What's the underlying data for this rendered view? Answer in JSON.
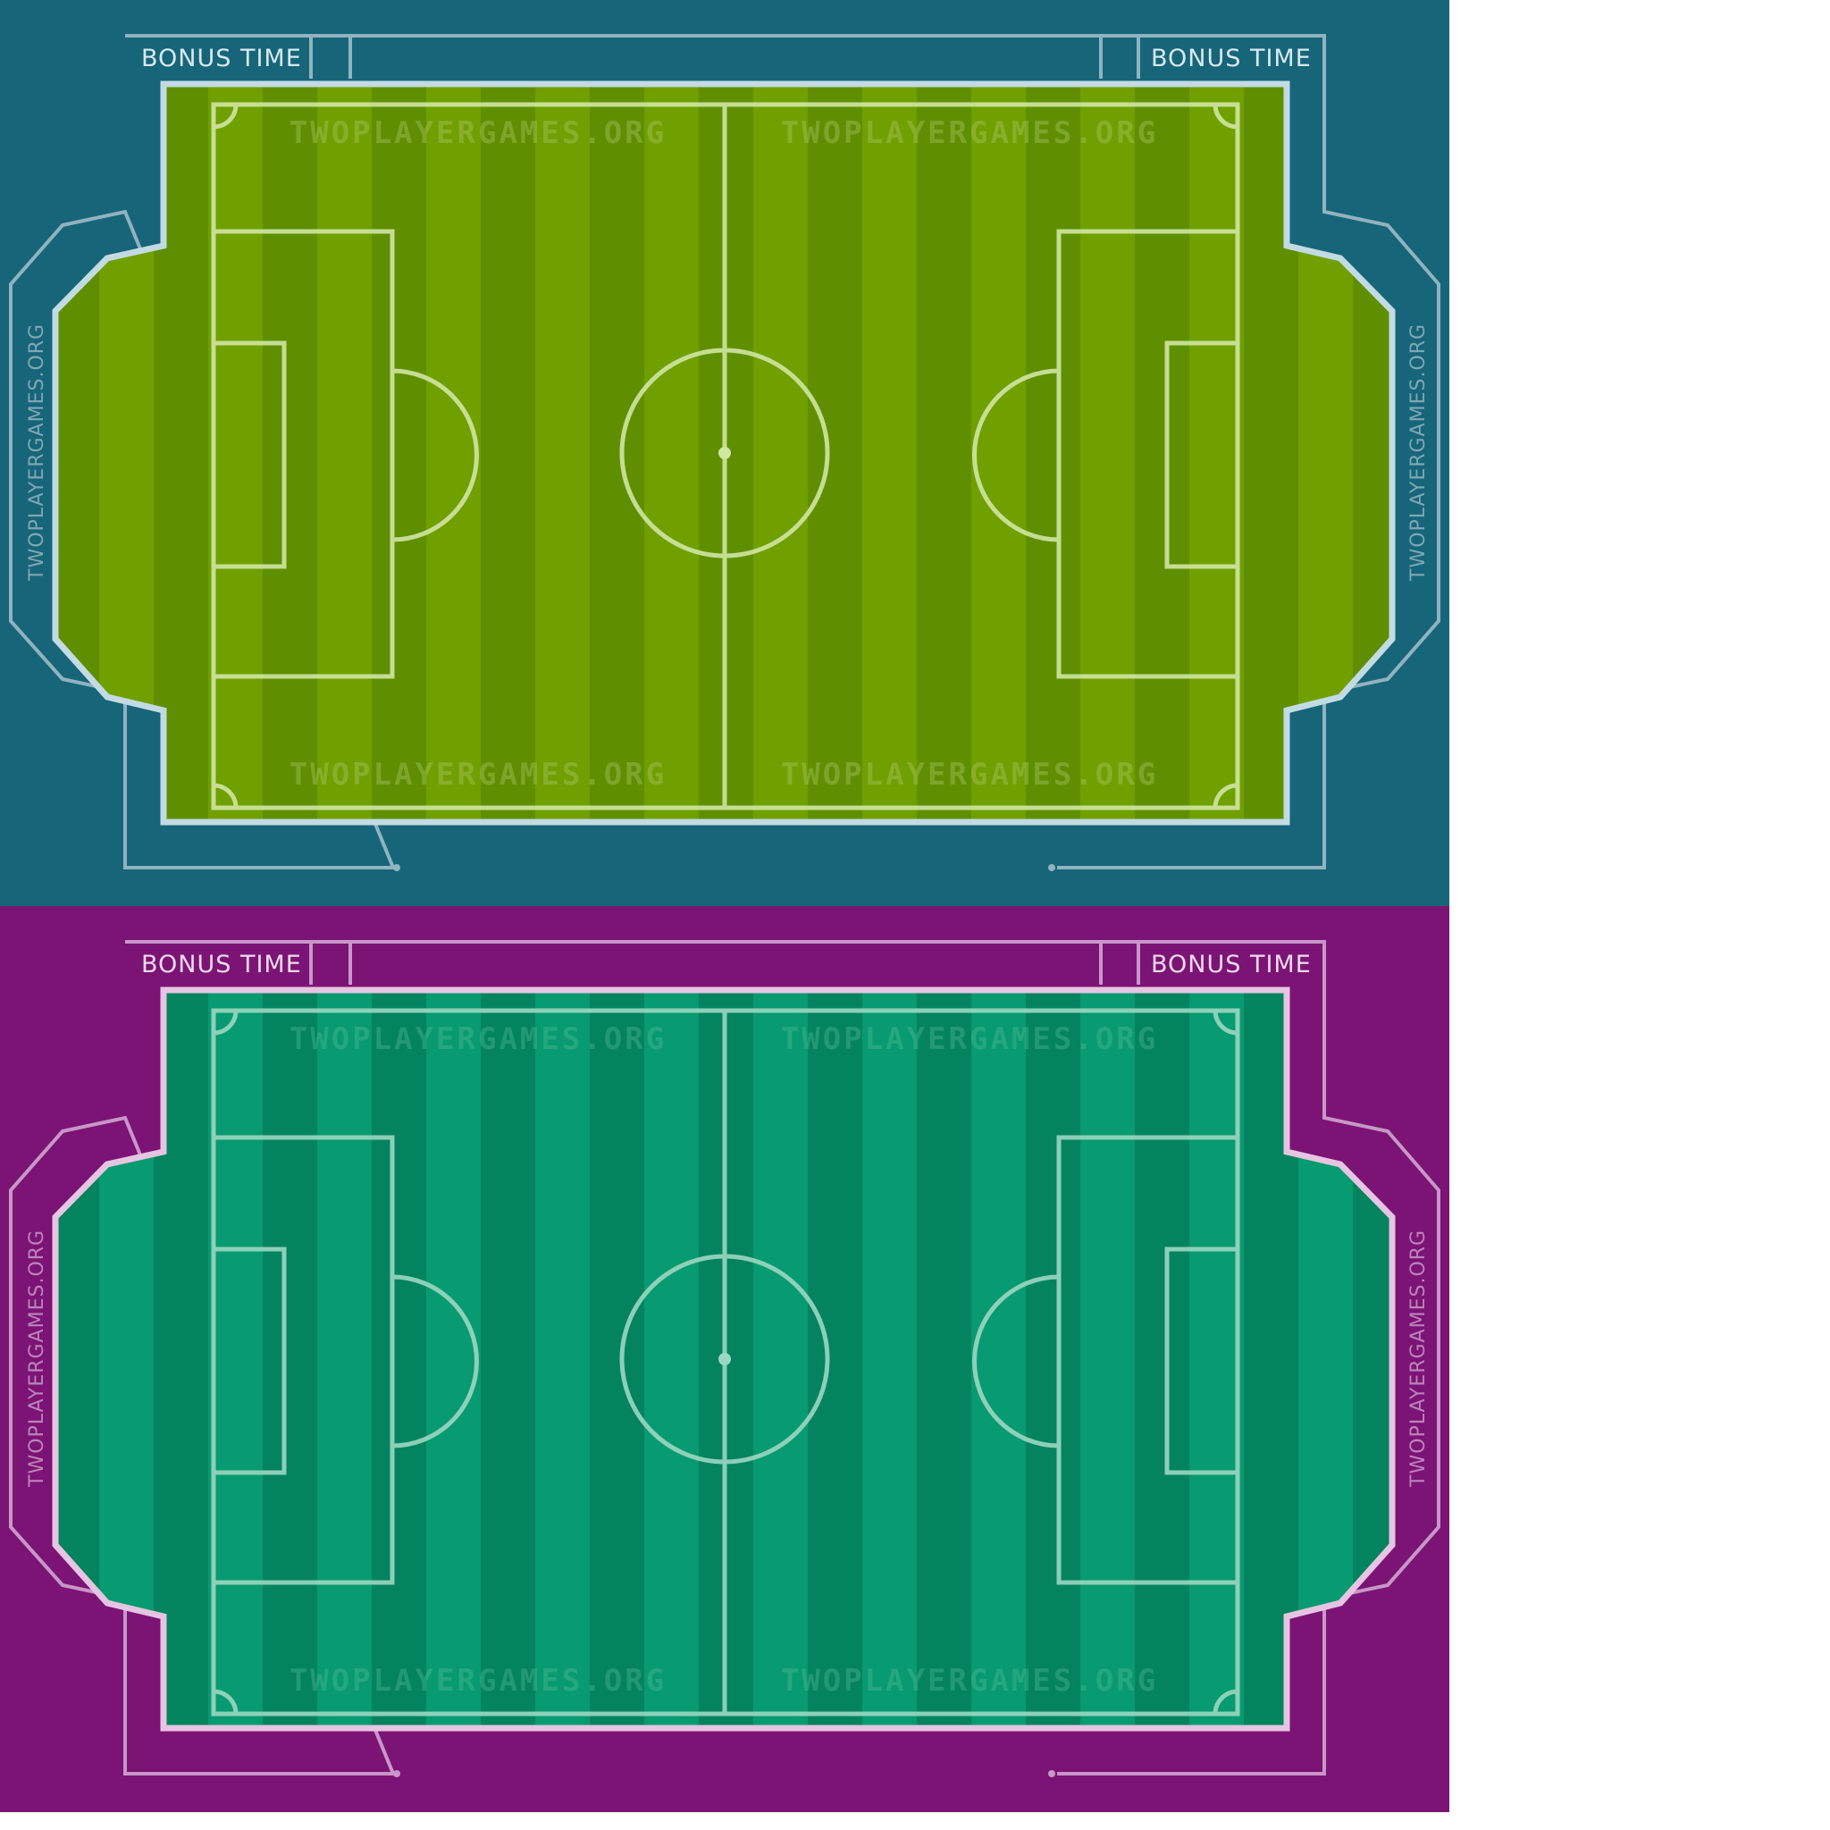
{
  "boards": [
    {
      "id": "top",
      "colors": {
        "background": "#176579",
        "border": "#8fb3bf",
        "rim": "#c2dbe3",
        "turf_light": "#709f00",
        "turf_dark": "#5f8f00",
        "lines": "#d0e6a3",
        "watermark": "#b6ce7e",
        "text": "#d7e9ef"
      }
    },
    {
      "id": "bottom",
      "colors": {
        "background": "#7b1474",
        "border": "#c896c8",
        "rim": "#e6c5e2",
        "turf_light": "#089a70",
        "turf_dark": "#04835f",
        "lines": "#9bd8c2",
        "watermark": "#5cc09c",
        "text": "#f0d9ee"
      }
    }
  ],
  "labels": {
    "bonus_left": "BONUS TIME",
    "bonus_right": "BONUS TIME",
    "watermark": "TWOPLAYERGAMES.ORG",
    "side_watermark": "TWOPLAYERGAMES.ORG"
  }
}
